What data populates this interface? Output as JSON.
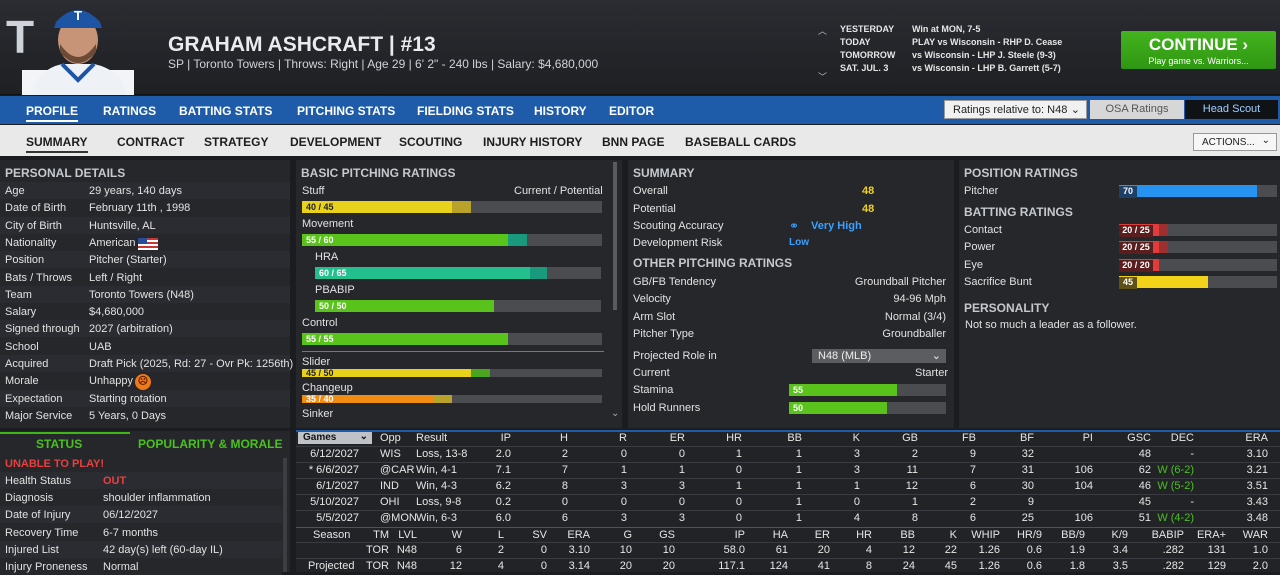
{
  "player": {
    "name": "GRAHAM ASHCRAFT  |  #13",
    "info": "SP | Toronto Towers  |  Throws: Right  |  Age 29  |  6' 2\" - 240 lbs  |  Salary: $4,680,000"
  },
  "schedule": [
    {
      "day": "YESTERDAY",
      "game": "Win at MON, 7-5"
    },
    {
      "day": "TODAY",
      "game": "PLAY vs Wisconsin - RHP D. Cease"
    },
    {
      "day": "TOMORROW",
      "game": "vs Wisconsin - LHP J. Steele (9-3)"
    },
    {
      "day": "SAT. JUL. 3",
      "game": "vs Wisconsin - LHP B. Garrett (5-7)"
    }
  ],
  "continue": {
    "label": "CONTINUE",
    "sub": "Play game vs. Warriors..."
  },
  "nav1": [
    "PROFILE",
    "RATINGS",
    "BATTING STATS",
    "PITCHING STATS",
    "FIELDING STATS",
    "HISTORY",
    "EDITOR"
  ],
  "ratings_relative": "Ratings relative to: N48",
  "osa": "OSA Ratings",
  "head_scout": "Head Scout",
  "nav2": [
    "SUMMARY",
    "CONTRACT",
    "STRATEGY",
    "DEVELOPMENT",
    "SCOUTING",
    "INJURY HISTORY",
    "BNN PAGE",
    "BASEBALL CARDS"
  ],
  "actions": "ACTIONS...",
  "personal": {
    "title": "PERSONAL DETAILS",
    "rows": [
      [
        "Age",
        "29 years, 140 days"
      ],
      [
        "Date of Birth",
        "February 11th , 1998"
      ],
      [
        "City of Birth",
        "Huntsville, AL"
      ],
      [
        "Nationality",
        "American"
      ],
      [
        "Position",
        "Pitcher (Starter)"
      ],
      [
        "Bats / Throws",
        "Left / Right"
      ],
      [
        "Team",
        "Toronto Towers (N48)"
      ],
      [
        "Salary",
        "$4,680,000"
      ],
      [
        "Signed through",
        "2027 (arbitration)"
      ],
      [
        "School",
        "UAB"
      ],
      [
        "Acquired",
        "Draft Pick (2025, Rd: 27 - Ovr Pk: 1256th)"
      ],
      [
        "Morale",
        "Unhappy"
      ],
      [
        "Expectation",
        "Starting rotation"
      ],
      [
        "Major Service",
        "5 Years, 0 Days"
      ]
    ]
  },
  "status": {
    "tab1": "STATUS",
    "tab2": "POPULARITY & MORALE",
    "alert": "UNABLE TO PLAY!",
    "rows": [
      [
        "Health Status",
        "OUT"
      ],
      [
        "Diagnosis",
        "shoulder inflammation"
      ],
      [
        "Date of Injury",
        "06/12/2027"
      ],
      [
        "Recovery Time",
        "6-7 months"
      ],
      [
        "Injured List",
        "42 day(s) left (60-day IL)"
      ],
      [
        "Injury Proneness",
        "Normal"
      ]
    ]
  },
  "basic": {
    "title": "BASIC PITCHING RATINGS",
    "header": "Current / Potential",
    "items": [
      {
        "label": "Stuff",
        "text": "40 / 45",
        "cur": 40,
        "pot": 45,
        "color": "#e8d21b",
        "pcolor": "#b9a22a"
      },
      {
        "label": "Movement",
        "text": "55 / 60",
        "cur": 55,
        "pot": 60,
        "color": "#59c21b",
        "pcolor": "#1a9a7d"
      },
      {
        "label": "HRA",
        "text": "60 / 65",
        "cur": 60,
        "pot": 65,
        "color": "#23c08d",
        "pcolor": "#1a9a7d"
      },
      {
        "label": "PBABIP",
        "text": "50 / 50",
        "cur": 50,
        "pot": 50,
        "color": "#59c21b",
        "pcolor": "#59c21b"
      },
      {
        "label": "Control",
        "text": "55 / 55",
        "cur": 55,
        "pot": 55,
        "color": "#59c21b",
        "pcolor": "#59c21b"
      },
      {
        "label": "Slider",
        "text": "45 / 50",
        "cur": 45,
        "pot": 50,
        "color": "#e8d21b",
        "pcolor": "#4aa41f"
      },
      {
        "label": "Changeup",
        "text": "35 / 40",
        "cur": 35,
        "pot": 40,
        "color": "#f08c12",
        "pcolor": "#b9a22a"
      },
      {
        "label": "Sinker",
        "text": "",
        "cur": 0,
        "pot": 0,
        "color": "#59c21b",
        "pcolor": "#59c21b"
      }
    ]
  },
  "summary": {
    "title": "SUMMARY",
    "rows": [
      [
        "Overall",
        "48"
      ],
      [
        "Potential",
        "48"
      ],
      [
        "Scouting Accuracy",
        "Very High"
      ],
      [
        "Development Risk",
        "Low"
      ]
    ]
  },
  "other": {
    "title": "OTHER PITCHING RATINGS",
    "rows": [
      [
        "GB/FB Tendency",
        "Groundball Pitcher"
      ],
      [
        "Velocity",
        "94-96 Mph"
      ],
      [
        "Arm Slot",
        "Normal (3/4)"
      ],
      [
        "Pitcher Type",
        "Groundballer"
      ]
    ],
    "role_label": "Projected Role in",
    "role_value": "N48 (MLB)",
    "current_label": "Current",
    "current_value": "Starter",
    "stamina": {
      "label": "Stamina",
      "value": 55
    },
    "hold": {
      "label": "Hold Runners",
      "value": 50
    }
  },
  "position": {
    "title": "POSITION RATINGS",
    "pitcher": {
      "label": "Pitcher",
      "value": 70
    }
  },
  "batting": {
    "title": "BATTING RATINGS",
    "items": [
      {
        "label": "Contact",
        "text": "20 / 25",
        "cur": 20,
        "pot": 25,
        "color": "#e23b3b"
      },
      {
        "label": "Power",
        "text": "20 / 25",
        "cur": 20,
        "pot": 25,
        "color": "#e23b3b"
      },
      {
        "label": "Eye",
        "text": "20 / 20",
        "cur": 20,
        "pot": 20,
        "color": "#e23b3b"
      },
      {
        "label": "Sacrifice Bunt",
        "text": "45",
        "cur": 45,
        "pot": 45,
        "color": "#f3d21a"
      }
    ]
  },
  "personality": {
    "title": "PERSONALITY",
    "text": "Not so much a leader as a follower."
  },
  "games": {
    "dd": "Games",
    "headers": [
      "Opp",
      "Result",
      "IP",
      "H",
      "R",
      "ER",
      "HR",
      "BB",
      "K",
      "GB",
      "FB",
      "BF",
      "PI",
      "GSC",
      "DEC",
      "ERA"
    ],
    "rows": [
      [
        "6/12/2027",
        "WIS",
        "Loss, 13-8",
        "2.0",
        "2",
        "0",
        "0",
        "1",
        "1",
        "3",
        "2",
        "9",
        "32",
        "48",
        "-",
        "3.10"
      ],
      [
        "* 6/6/2027",
        "@CAR",
        "Win, 4-1",
        "7.1",
        "7",
        "1",
        "1",
        "0",
        "1",
        "3",
        "11",
        "7",
        "31",
        "106",
        "62",
        "W (6-2)",
        "3.21"
      ],
      [
        "6/1/2027",
        "IND",
        "Win, 4-3",
        "6.2",
        "8",
        "3",
        "3",
        "1",
        "1",
        "1",
        "12",
        "6",
        "30",
        "104",
        "46",
        "W (5-2)",
        "3.51"
      ],
      [
        "5/10/2027",
        "OHI",
        "Loss, 9-8",
        "0.2",
        "0",
        "0",
        "0",
        "0",
        "1",
        "0",
        "1",
        "2",
        "9",
        "45",
        "-",
        "3.43"
      ],
      [
        "5/5/2027",
        "@MON",
        "Win, 6-3",
        "6.0",
        "6",
        "3",
        "3",
        "0",
        "1",
        "4",
        "8",
        "6",
        "25",
        "106",
        "51",
        "W (4-2)",
        "3.48"
      ]
    ]
  },
  "season": {
    "headers": [
      "Season",
      "TM",
      "LVL",
      "W",
      "L",
      "SV",
      "ERA",
      "G",
      "GS",
      "IP",
      "HA",
      "ER",
      "HR",
      "BB",
      "K",
      "WHIP",
      "HR/9",
      "BB/9",
      "K/9",
      "BABIP",
      "ERA+",
      "WAR"
    ],
    "rows": [
      [
        "",
        "TOR",
        "N48",
        "6",
        "2",
        "0",
        "3.10",
        "10",
        "10",
        "58.0",
        "61",
        "20",
        "4",
        "12",
        "22",
        "1.26",
        "0.6",
        "1.9",
        "3.4",
        ".282",
        "131",
        "1.0"
      ],
      [
        "Projected",
        "TOR",
        "N48",
        "12",
        "4",
        "0",
        "3.14",
        "20",
        "20",
        "117.1",
        "124",
        "41",
        "8",
        "24",
        "45",
        "1.26",
        "0.6",
        "1.8",
        "3.5",
        ".282",
        "129",
        "2.0"
      ]
    ]
  }
}
